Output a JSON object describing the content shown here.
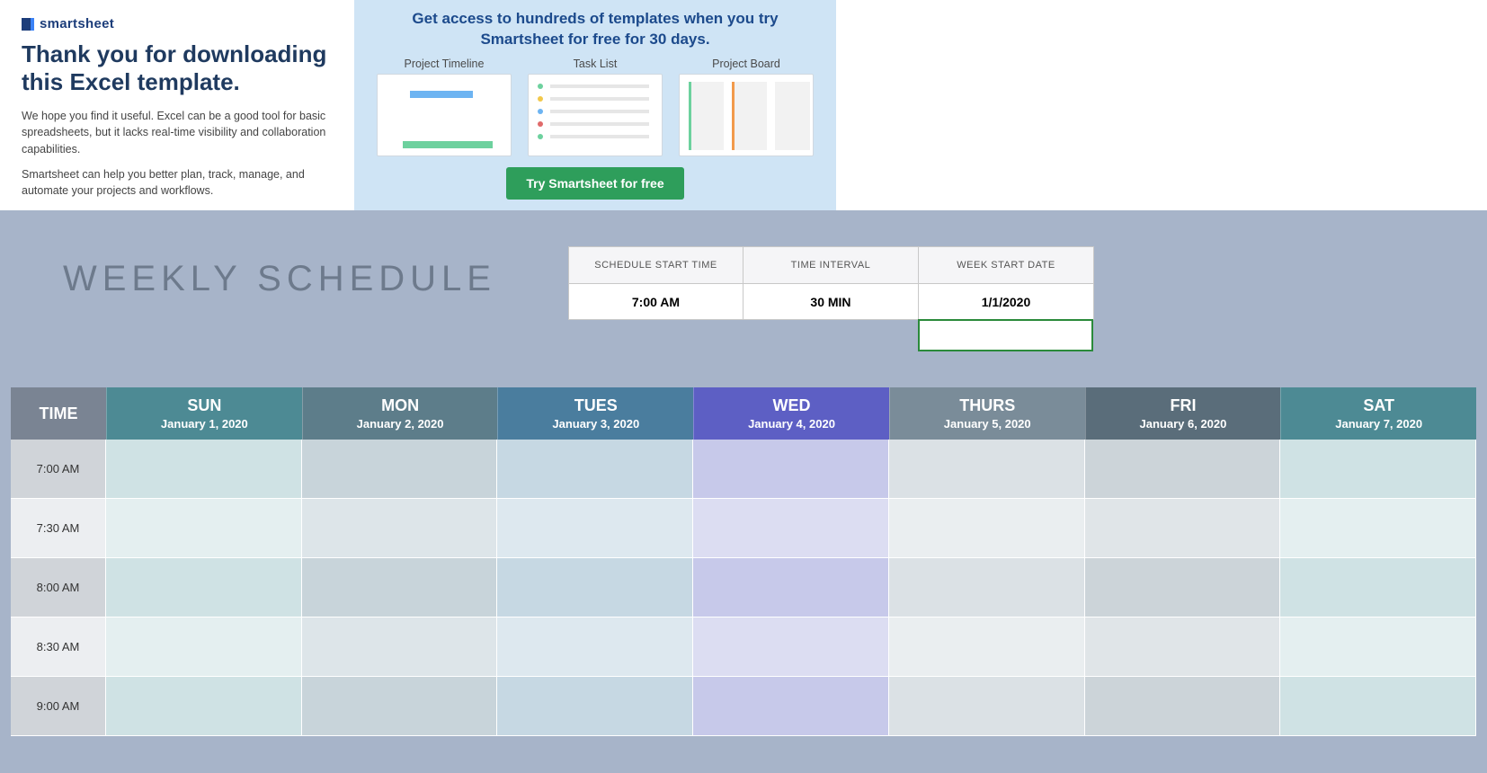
{
  "promo": {
    "brand": "smartsheet",
    "title": "Thank you for downloading this Excel template.",
    "p1": "We hope you find it useful. Excel can be a good tool for basic spreadsheets, but it lacks real-time visibility and collaboration capabilities.",
    "p2": "Smartsheet can help you better plan, track, manage, and automate your projects and workflows.",
    "headline": "Get access to hundreds of templates when you try Smartsheet for free for 30 days.",
    "thumbs": [
      "Project Timeline",
      "Task List",
      "Project Board"
    ],
    "cta": "Try Smartsheet for free"
  },
  "schedule": {
    "title": "WEEKLY SCHEDULE",
    "meta": {
      "headers": [
        "SCHEDULE START TIME",
        "TIME INTERVAL",
        "WEEK START DATE"
      ],
      "values": [
        "7:00 AM",
        "30 MIN",
        "1/1/2020"
      ]
    },
    "time_header": "TIME",
    "days": [
      {
        "name": "SUN",
        "date": "January 1, 2020",
        "header_bg": "#4d8a94"
      },
      {
        "name": "MON",
        "date": "January 2, 2020",
        "header_bg": "#5d7d8a"
      },
      {
        "name": "TUES",
        "date": "January 3, 2020",
        "header_bg": "#4a7d9e"
      },
      {
        "name": "WED",
        "date": "January 4, 2020",
        "header_bg": "#5d5fc4"
      },
      {
        "name": "THURS",
        "date": "January 5, 2020",
        "header_bg": "#7a8c99"
      },
      {
        "name": "FRI",
        "date": "January 6, 2020",
        "header_bg": "#5a6d7a"
      },
      {
        "name": "SAT",
        "date": "January 7, 2020",
        "header_bg": "#4d8a94"
      }
    ],
    "times": [
      "7:00 AM",
      "7:30 AM",
      "8:00 AM",
      "8:30 AM",
      "9:00 AM"
    ],
    "time_cell_colors": {
      "even": "#d0d4d9",
      "odd": "#eceef1"
    },
    "day_cell_colors": {
      "SUN": {
        "even": "#cfe2e4",
        "odd": "#e4eff0"
      },
      "MON": {
        "even": "#c8d4da",
        "odd": "#dde5e9"
      },
      "TUES": {
        "even": "#c6d8e3",
        "odd": "#dde8ef"
      },
      "WED": {
        "even": "#c7c9ea",
        "odd": "#dcddf2"
      },
      "THURS": {
        "even": "#dbe1e5",
        "odd": "#eaeef0"
      },
      "FRI": {
        "even": "#ccd4d9",
        "odd": "#e0e5e8"
      },
      "SAT": {
        "even": "#cfe2e4",
        "odd": "#e4eff0"
      }
    }
  }
}
